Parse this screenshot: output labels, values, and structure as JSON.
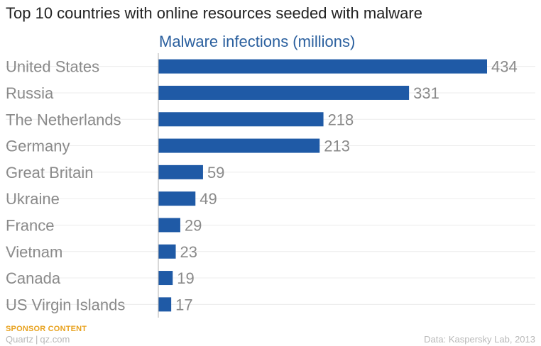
{
  "title": "Top 10 countries with online resources seeded with malware",
  "footer": {
    "sponsor": "SPONSOR CONTENT",
    "brand_name": "Quartz",
    "brand_separator": "|",
    "brand_site": "qz.com",
    "source": "Data: Kaspersky Lab, 2013"
  },
  "colors": {
    "bar": "#1f5aa6",
    "subtitle": "#2a5f9e",
    "category_label": "#8a8a8a",
    "value_label": "#8a8a8a",
    "gridline": "#ececec",
    "axis": "#b0b0b0",
    "sponsor": "#e8a21e"
  },
  "chart_data": {
    "type": "bar",
    "orientation": "horizontal",
    "title": "Top 10 countries with online resources seeded with malware",
    "subtitle": "Malware infections (millions)",
    "categories": [
      "United States",
      "Russia",
      "The Netherlands",
      "Germany",
      "Great Britain",
      "Ukraine",
      "France",
      "Vietnam",
      "Canada",
      "US Virgin Islands"
    ],
    "values": [
      434,
      331,
      218,
      213,
      59,
      49,
      29,
      23,
      19,
      17
    ],
    "xlabel": "",
    "ylabel": "",
    "xlim": [
      0,
      434
    ],
    "grid": true,
    "data_labels": true
  }
}
